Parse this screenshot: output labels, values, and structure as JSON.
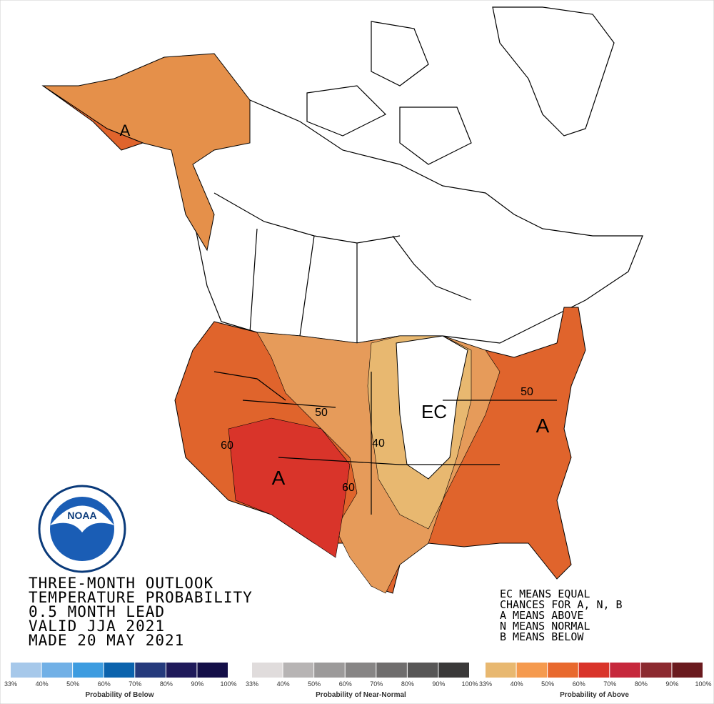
{
  "title_lines": [
    "THREE-MONTH OUTLOOK",
    "TEMPERATURE PROBABILITY",
    "0.5 MONTH LEAD",
    "VALID JJA 2021",
    "MADE 20 MAY 2021"
  ],
  "notes": [
    "EC MEANS EQUAL",
    "CHANCES FOR A, N, B",
    "A MEANS ABOVE",
    "N MEANS NORMAL",
    "B MEANS BELOW"
  ],
  "map_labels": [
    "A",
    "A",
    "A",
    "EC",
    "50",
    "50",
    "40",
    "60",
    "60"
  ],
  "logo": "NOAA",
  "legends": [
    {
      "title": "Probability of Below",
      "colors": [
        "#a6c8ea",
        "#71b0e6",
        "#3d9ce0",
        "#0b63ad",
        "#253a7c",
        "#1f1a5a",
        "#140f48"
      ],
      "ticks": [
        "33%",
        "40%",
        "50%",
        "60%",
        "70%",
        "80%",
        "90%",
        "100%"
      ]
    },
    {
      "title": "Probability of Near-Normal",
      "colors": [
        "#e0dcdc",
        "#b7b4b4",
        "#9c9a9a",
        "#878585",
        "#6f6d6d",
        "#575656",
        "#3a3939"
      ],
      "ticks": [
        "33%",
        "40%",
        "50%",
        "60%",
        "70%",
        "80%",
        "90%",
        "100%"
      ]
    },
    {
      "title": "Probability of Above",
      "colors": [
        "#e8b870",
        "#f59a4e",
        "#e8692e",
        "#d9342a",
        "#c6283c",
        "#8c2a30",
        "#6a1a1e"
      ],
      "ticks": [
        "33%",
        "40%",
        "50%",
        "60%",
        "70%",
        "80%",
        "90%",
        "100%"
      ]
    }
  ]
}
